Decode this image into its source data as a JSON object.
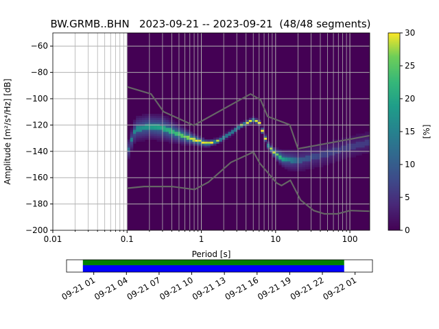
{
  "chart_data": {
    "type": "heatmap",
    "title": "BW.GRMB..BHN   2023-09-21 -- 2023-09-21  (48/48 segments)",
    "xlabel": "Period [s]",
    "ylabel": "Amplitude [m²/s⁴/Hz] [dB]",
    "xscale": "log",
    "xlim": [
      0.01,
      185
    ],
    "ylim": [
      -200,
      -50
    ],
    "xticks": [
      {
        "v": 0.01,
        "label": "0.01"
      },
      {
        "v": 0.1,
        "label": "0.1"
      },
      {
        "v": 1,
        "label": "1"
      },
      {
        "v": 10,
        "label": "10"
      },
      {
        "v": 100,
        "label": "100"
      }
    ],
    "yticks": [
      {
        "v": -60,
        "label": "−60"
      },
      {
        "v": -80,
        "label": "−80"
      },
      {
        "v": -100,
        "label": "−100"
      },
      {
        "v": -120,
        "label": "−120"
      },
      {
        "v": -140,
        "label": "−140"
      },
      {
        "v": -160,
        "label": "−160"
      },
      {
        "v": -180,
        "label": "−180"
      },
      {
        "v": -200,
        "label": "−200"
      }
    ],
    "grid": true,
    "colorbar": {
      "label": "[%]",
      "range": [
        0,
        30
      ],
      "ticks": [
        {
          "v": 0,
          "label": "0"
        },
        {
          "v": 5,
          "label": "5"
        },
        {
          "v": 10,
          "label": "10"
        },
        {
          "v": 15,
          "label": "15"
        },
        {
          "v": 20,
          "label": "20"
        },
        {
          "v": 25,
          "label": "25"
        },
        {
          "v": 30,
          "label": "30"
        }
      ],
      "colormap": "viridis"
    },
    "psd_mode_curve": [
      {
        "period": 0.1,
        "db": -142,
        "peak": 10,
        "spread": 6
      },
      {
        "period": 0.11,
        "db": -134,
        "peak": 14,
        "spread": 6
      },
      {
        "period": 0.13,
        "db": -123,
        "peak": 16,
        "spread": 7
      },
      {
        "period": 0.2,
        "db": -121,
        "peak": 18,
        "spread": 7
      },
      {
        "period": 0.3,
        "db": -122,
        "peak": 20,
        "spread": 7
      },
      {
        "period": 0.5,
        "db": -127,
        "peak": 24,
        "spread": 5
      },
      {
        "period": 0.8,
        "db": -131,
        "peak": 30,
        "spread": 3
      },
      {
        "period": 1.2,
        "db": -134,
        "peak": 30,
        "spread": 2
      },
      {
        "period": 1.7,
        "db": -132,
        "peak": 30,
        "spread": 1.5
      },
      {
        "period": 2.5,
        "db": -126,
        "peak": 30,
        "spread": 1.5
      },
      {
        "period": 3.5,
        "db": -120,
        "peak": 30,
        "spread": 1.5
      },
      {
        "period": 5,
        "db": -116,
        "peak": 30,
        "spread": 1.5
      },
      {
        "period": 6,
        "db": -118,
        "peak": 30,
        "spread": 1.5
      },
      {
        "period": 7,
        "db": -128,
        "peak": 30,
        "spread": 2
      },
      {
        "period": 8,
        "db": -136,
        "peak": 30,
        "spread": 2
      },
      {
        "period": 10,
        "db": -142,
        "peak": 28,
        "spread": 3
      },
      {
        "period": 13,
        "db": -146,
        "peak": 18,
        "spread": 5
      },
      {
        "period": 20,
        "db": -147,
        "peak": 10,
        "spread": 7
      },
      {
        "period": 40,
        "db": -143,
        "peak": 7,
        "spread": 8
      },
      {
        "period": 80,
        "db": -138,
        "peak": 6,
        "spread": 8
      },
      {
        "period": 185,
        "db": -133,
        "peak": 6,
        "spread": 8
      }
    ],
    "noise_model_high": [
      [
        0.1,
        -91
      ],
      [
        0.21,
        -96.4
      ],
      [
        0.31,
        -109.9
      ],
      [
        0.79,
        -120.3
      ],
      [
        4.6,
        -96.4
      ],
      [
        6.3,
        -101
      ],
      [
        7.8,
        -113.5
      ],
      [
        15.5,
        -119.8
      ],
      [
        20,
        -138
      ],
      [
        185,
        -128
      ]
    ],
    "noise_model_low": [
      [
        0.1,
        -168
      ],
      [
        0.17,
        -166.7
      ],
      [
        0.4,
        -166.7
      ],
      [
        0.81,
        -169
      ],
      [
        1.24,
        -163.5
      ],
      [
        2.5,
        -148.4
      ],
      [
        4.8,
        -141
      ],
      [
        5.1,
        -141
      ],
      [
        6.1,
        -149
      ],
      [
        10.3,
        -164
      ],
      [
        12,
        -166
      ],
      [
        15.8,
        -162
      ],
      [
        21.7,
        -177
      ],
      [
        32.6,
        -185
      ],
      [
        45.5,
        -187.5
      ],
      [
        68,
        -187.5
      ],
      [
        100,
        -185
      ],
      [
        185,
        -185.5
      ]
    ]
  },
  "timeline": {
    "colors": {
      "coverage": "#008000",
      "used": "#0000ff"
    },
    "start_hour": -1.5,
    "end_hour": 26.6,
    "data_from_hour": 0,
    "data_to_hour": 24,
    "ticks": [
      {
        "h": 1,
        "label": "09-21 01"
      },
      {
        "h": 4,
        "label": "09-21 04"
      },
      {
        "h": 7,
        "label": "09-21 07"
      },
      {
        "h": 10,
        "label": "09-21 10"
      },
      {
        "h": 13,
        "label": "09-21 13"
      },
      {
        "h": 16,
        "label": "09-21 16"
      },
      {
        "h": 19,
        "label": "09-21 19"
      },
      {
        "h": 22,
        "label": "09-21 22"
      },
      {
        "h": 25,
        "label": "09-22 01"
      }
    ]
  }
}
